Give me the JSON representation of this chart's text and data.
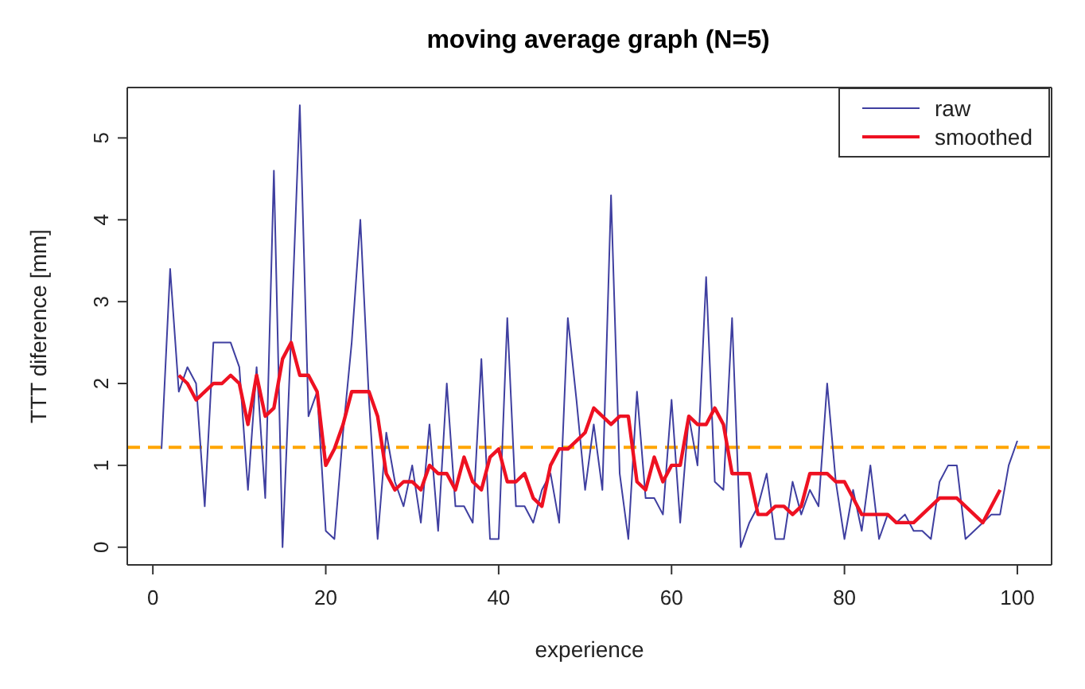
{
  "chart_data": {
    "type": "line",
    "title": "moving average graph (N=5)",
    "xlabel": "experience",
    "ylabel": "TTT diference [mm]",
    "x": [
      1,
      2,
      3,
      4,
      5,
      6,
      7,
      8,
      9,
      10,
      11,
      12,
      13,
      14,
      15,
      16,
      17,
      18,
      19,
      20,
      21,
      22,
      23,
      24,
      25,
      26,
      27,
      28,
      29,
      30,
      31,
      32,
      33,
      34,
      35,
      36,
      37,
      38,
      39,
      40,
      41,
      42,
      43,
      44,
      45,
      46,
      47,
      48,
      49,
      50,
      51,
      52,
      53,
      54,
      55,
      56,
      57,
      58,
      59,
      60,
      61,
      62,
      63,
      64,
      65,
      66,
      67,
      68,
      69,
      70,
      71,
      72,
      73,
      74,
      75,
      76,
      77,
      78,
      79,
      80,
      81,
      82,
      83,
      84,
      85,
      86,
      87,
      88,
      89,
      90,
      91,
      92,
      93,
      94,
      95,
      96,
      97,
      98,
      99,
      100
    ],
    "series": [
      {
        "name": "raw",
        "color": "#3f3fa0",
        "values": [
          1.2,
          3.4,
          1.9,
          2.2,
          2.0,
          0.5,
          2.5,
          2.5,
          2.5,
          2.2,
          0.7,
          2.2,
          0.6,
          4.6,
          0,
          2.6,
          5.4,
          1.6,
          1.9,
          0.2,
          0.1,
          1.4,
          2.5,
          4.0,
          1.8,
          0.1,
          1.4,
          0.8,
          0.5,
          1.0,
          0.3,
          1.5,
          0.2,
          2.0,
          0.5,
          0.5,
          0.3,
          2.3,
          0.1,
          0.1,
          2.8,
          0.5,
          0.5,
          0.3,
          0.7,
          0.9,
          0.3,
          2.8,
          1.8,
          0.7,
          1.5,
          0.7,
          4.3,
          0.9,
          0.1,
          1.9,
          0.6,
          0.6,
          0.4,
          1.8,
          0.3,
          1.6,
          1.0,
          3.3,
          0.8,
          0.7,
          2.8,
          0,
          0.3,
          0.5,
          0.9,
          0.1,
          0.1,
          0.8,
          0.4,
          0.7,
          0.5,
          2.0,
          0.8,
          0.1,
          0.7,
          0.2,
          1.0,
          0.1,
          0.4,
          0.3,
          0.4,
          0.2,
          0.2,
          0.1,
          0.8,
          1.0,
          1.0,
          0.1,
          0.2,
          0.3,
          0.4,
          0.4,
          1.0,
          1.3
        ]
      },
      {
        "name": "smoothed",
        "color": "#ee1122",
        "x": [
          3,
          4,
          5,
          6,
          7,
          8,
          9,
          10,
          11,
          12,
          13,
          14,
          15,
          16,
          17,
          18,
          19,
          20,
          21,
          22,
          23,
          24,
          25,
          26,
          27,
          28,
          29,
          30,
          31,
          32,
          33,
          34,
          35,
          36,
          37,
          38,
          39,
          40,
          41,
          42,
          43,
          44,
          45,
          46,
          47,
          48,
          49,
          50,
          51,
          52,
          53,
          54,
          55,
          56,
          57,
          58,
          59,
          60,
          61,
          62,
          63,
          64,
          65,
          66,
          67,
          68,
          69,
          70,
          71,
          72,
          73,
          74,
          75,
          76,
          77,
          78,
          79,
          80,
          81,
          82,
          83,
          84,
          85,
          86,
          87,
          88,
          89,
          90,
          91,
          92,
          93,
          94,
          95,
          96,
          97,
          98
        ],
        "values": [
          2.1,
          2.0,
          1.8,
          1.9,
          2.0,
          2.0,
          2.1,
          2.0,
          1.5,
          2.1,
          1.6,
          1.7,
          2.3,
          2.5,
          2.1,
          2.1,
          1.9,
          1.0,
          1.2,
          1.5,
          1.9,
          1.9,
          1.9,
          1.6,
          0.9,
          0.7,
          0.8,
          0.8,
          0.7,
          1.0,
          0.9,
          0.9,
          0.7,
          1.1,
          0.8,
          0.7,
          1.1,
          1.2,
          0.8,
          0.8,
          0.9,
          0.6,
          0.5,
          1.0,
          1.2,
          1.2,
          1.3,
          1.4,
          1.7,
          1.6,
          1.5,
          1.6,
          1.6,
          0.8,
          0.7,
          1.1,
          0.8,
          1.0,
          1.0,
          1.6,
          1.5,
          1.5,
          1.7,
          1.5,
          0.9,
          0.9,
          0.9,
          0.4,
          0.4,
          0.5,
          0.5,
          0.4,
          0.5,
          0.9,
          0.9,
          0.9,
          0.8,
          0.8,
          0.6,
          0.4,
          0.4,
          0.4,
          0.4,
          0.3,
          0.3,
          0.3,
          0.4,
          0.5,
          0.6,
          0.6,
          0.6,
          0.5,
          0.4,
          0.3,
          0.5,
          0.7
        ]
      }
    ],
    "ref_lines": [
      {
        "axis": "y",
        "value": 1.22,
        "color": "#ffa500",
        "line_style": "dashed"
      }
    ],
    "xlim": [
      -2.96,
      103.96
    ],
    "xticks": [
      0,
      20,
      40,
      60,
      80,
      100
    ],
    "ylim": [
      -0.216,
      5.616
    ],
    "yticks": [
      0,
      1,
      2,
      3,
      4,
      5
    ],
    "legend": "top right",
    "marker": "none",
    "line_style": "solid"
  }
}
